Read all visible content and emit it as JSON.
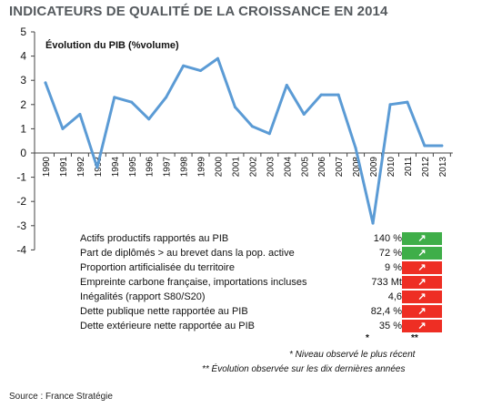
{
  "title": "INDICATEURS DE QUALITÉ DE LA CROISSANCE EN 2014",
  "colors": {
    "line": "#5b9bd5",
    "axis": "#444444",
    "green": "#3fae49",
    "red": "#ee2e24",
    "title": "#555a5e"
  },
  "chart_data": {
    "type": "line",
    "subtitle": "Évolution du PIB  (%volume)",
    "x": [
      "1990",
      "1991",
      "1992",
      "1993",
      "1994",
      "1995",
      "1996",
      "1997",
      "1998",
      "1999",
      "2000",
      "2001",
      "2002",
      "2003",
      "2004",
      "2005",
      "2006",
      "2007",
      "2008",
      "2009",
      "2010",
      "2011",
      "2012",
      "2013"
    ],
    "series": [
      {
        "values": [
          2.9,
          1.0,
          1.6,
          -0.6,
          2.3,
          2.1,
          1.4,
          2.3,
          3.6,
          3.4,
          3.9,
          1.9,
          1.1,
          0.8,
          2.8,
          1.6,
          2.4,
          2.4,
          0.2,
          -2.9,
          2.0,
          2.1,
          0.3,
          0.3
        ]
      }
    ],
    "ylim": [
      -4,
      5
    ],
    "yticks": [
      "-4",
      "-3",
      "-2",
      "-1",
      "0",
      "1",
      "2",
      "3",
      "4",
      "5"
    ],
    "grid": false
  },
  "indicators": [
    {
      "label": "Actifs productifs rapportés au PIB",
      "value": "140 %",
      "trend": "↗",
      "color": "green"
    },
    {
      "label": "Part de diplômés > au brevet dans la pop. active",
      "value": "72 %",
      "trend": "↗",
      "color": "green"
    },
    {
      "label": "Proportion artificialisée du territoire",
      "value": "9 %",
      "trend": "↗",
      "color": "red"
    },
    {
      "label": "Empreinte carbone française, importations incluses",
      "value": "733 Mt",
      "trend": "↗",
      "color": "red"
    },
    {
      "label": "Inégalités (rapport S80/S20)",
      "value": "4,6",
      "trend": "↗",
      "color": "red"
    },
    {
      "label": "Dette publique nette rapportée au PIB",
      "value": "82,4 %",
      "trend": "↗",
      "color": "red"
    },
    {
      "label": "Dette extérieure nette rapportée au PIB",
      "value": "35 %",
      "trend": "↗",
      "color": "red"
    }
  ],
  "col_marks": {
    "value_mark": "*",
    "trend_mark": "**"
  },
  "notes": {
    "note1": "* Niveau observé le plus récent",
    "note2": "** Évolution observée sur les dix dernières années"
  },
  "source": "Source : France Stratégie"
}
